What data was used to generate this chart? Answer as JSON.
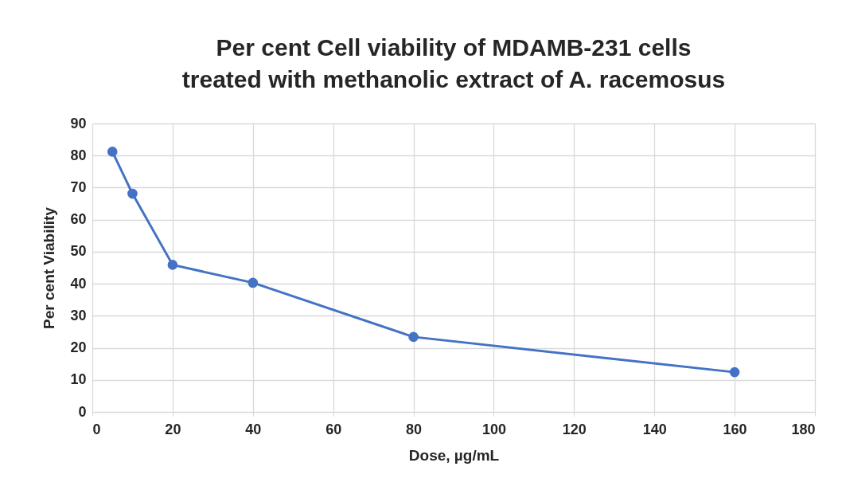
{
  "chart_data": {
    "type": "line",
    "title": "Per cent Cell viability of MDAMB-231 cells treated with methanolic extract of A. racemosus",
    "xlabel": "Dose, µg/mL",
    "ylabel": "Per cent Viability",
    "x": [
      5,
      10,
      20,
      40,
      80,
      160
    ],
    "series": [
      {
        "color": "#4472c4",
        "values": [
          81.2,
          68.1,
          45.9,
          40.3,
          23.4,
          12.4
        ]
      }
    ],
    "xlim": [
      0,
      180
    ],
    "xticks": [
      0,
      20,
      40,
      60,
      80,
      100,
      120,
      140,
      160,
      180
    ],
    "ylim": [
      0,
      90
    ],
    "yticks": [
      0,
      10,
      20,
      30,
      40,
      50,
      60,
      70,
      80,
      90
    ],
    "grid": true,
    "marker": "circle",
    "line_style": "solid"
  }
}
